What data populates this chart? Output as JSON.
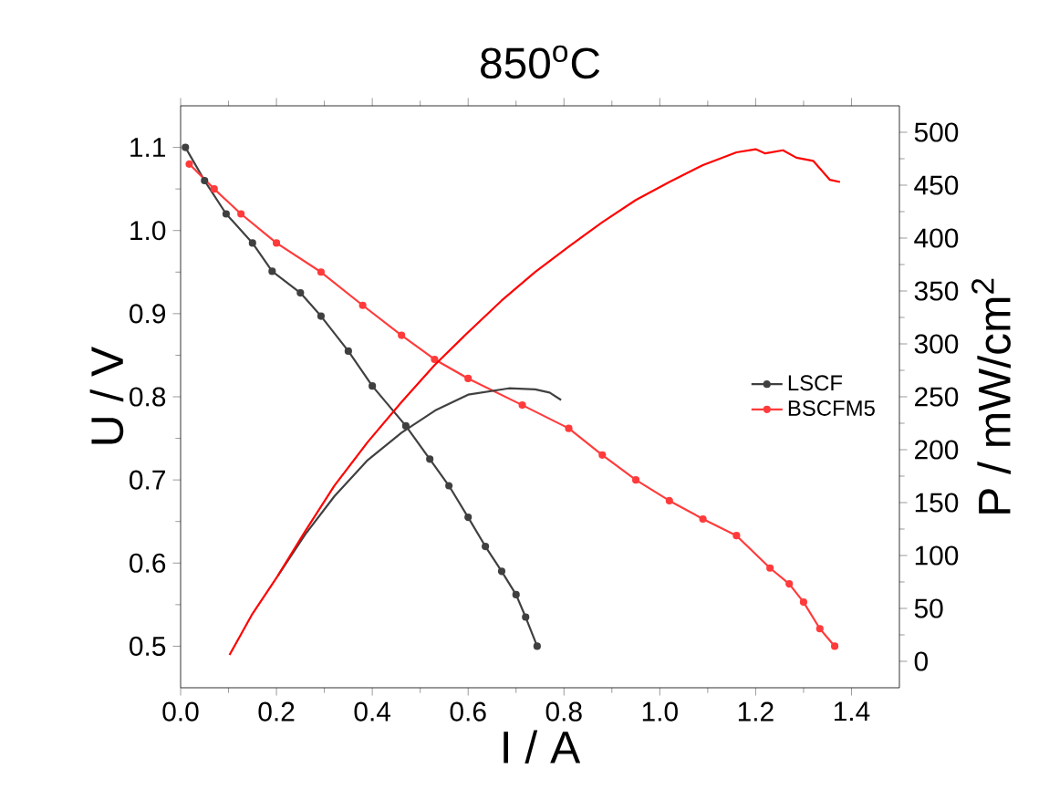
{
  "chart_data": {
    "type": "line",
    "title": "850$^{o}$C",
    "xlabel": "I / A",
    "ylabel": "U / V",
    "y2label": "P / mW/cm$^{2}$",
    "xlim": [
      0,
      1.5
    ],
    "ylim": [
      0.45,
      1.15
    ],
    "y2lim": [
      -25,
      525
    ],
    "xticks": [
      {
        "value": 0,
        "label": "0.0"
      },
      {
        "value": 0.2,
        "label": "0.2"
      },
      {
        "value": 0.4,
        "label": "0.4"
      },
      {
        "value": 0.6,
        "label": "0.6"
      },
      {
        "value": 0.8,
        "label": "0.8"
      },
      {
        "value": 1.0,
        "label": "1.0"
      },
      {
        "value": 1.2,
        "label": "1.2"
      },
      {
        "value": 1.4,
        "label": "1.4"
      }
    ],
    "yticks": [
      {
        "value": 0.5,
        "label": "0.5"
      },
      {
        "value": 0.6,
        "label": "0.6"
      },
      {
        "value": 0.7,
        "label": "0.7"
      },
      {
        "value": 0.8,
        "label": "0.8"
      },
      {
        "value": 0.9,
        "label": "0.9"
      },
      {
        "value": 1.0,
        "label": "1.0"
      },
      {
        "value": 1.1,
        "label": "1.1"
      }
    ],
    "y2ticks": [
      0,
      50,
      100,
      150,
      200,
      250,
      300,
      350,
      400,
      450,
      500
    ],
    "legend": "right",
    "grid": false,
    "series": [
      {
        "name": "LSCF",
        "color": "#404040",
        "marker": "circle",
        "x": [
          0.01,
          0.05,
          0.095,
          0.15,
          0.191,
          0.25,
          0.293,
          0.35,
          0.4,
          0.47,
          0.52,
          0.56,
          0.6,
          0.636,
          0.67,
          0.7,
          0.72,
          0.744
        ],
        "values": [
          1.1,
          1.06,
          1.02,
          0.985,
          0.951,
          0.925,
          0.897,
          0.855,
          0.813,
          0.765,
          0.725,
          0.693,
          0.655,
          0.62,
          0.59,
          0.562,
          0.535,
          0.5
        ]
      },
      {
        "name": "BSCFM5",
        "color": "#ff3b3b",
        "marker": "circle",
        "x": [
          0.018,
          0.07,
          0.126,
          0.2,
          0.293,
          0.38,
          0.461,
          0.53,
          0.6,
          0.713,
          0.81,
          0.88,
          0.95,
          1.02,
          1.09,
          1.16,
          1.23,
          1.27,
          1.3,
          1.334,
          1.365
        ],
        "values": [
          1.08,
          1.05,
          1.02,
          0.985,
          0.95,
          0.91,
          0.874,
          0.845,
          0.822,
          0.79,
          0.762,
          0.73,
          0.7,
          0.675,
          0.653,
          0.633,
          0.594,
          0.575,
          0.553,
          0.521,
          0.5
        ]
      },
      {
        "color": "#404040",
        "marker": "none",
        "axis": "y2",
        "x": [
          0.203,
          0.26,
          0.321,
          0.39,
          0.461,
          0.531,
          0.6,
          0.685,
          0.74,
          0.77,
          0.794
        ],
        "values": [
          81,
          120,
          156,
          190,
          216,
          237,
          252,
          258,
          257,
          254,
          247
        ]
      },
      {
        "color": "#ff0000",
        "marker": "none",
        "axis": "y2",
        "x": [
          0.102,
          0.15,
          0.203,
          0.26,
          0.321,
          0.39,
          0.461,
          0.53,
          0.6,
          0.67,
          0.74,
          0.81,
          0.88,
          0.95,
          1.02,
          1.09,
          1.16,
          1.2,
          1.22,
          1.257,
          1.285,
          1.32,
          1.355,
          1.376
        ],
        "values": [
          6,
          45,
          81,
          123,
          166,
          207,
          245,
          280,
          311,
          341,
          368,
          392,
          415,
          436,
          453,
          469,
          481,
          484,
          480,
          483,
          476,
          473,
          455,
          453
        ]
      }
    ]
  }
}
